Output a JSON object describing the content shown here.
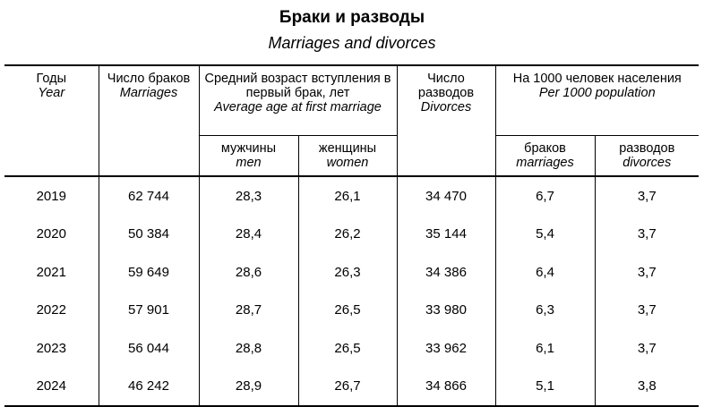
{
  "title": "Браки и разводы",
  "subtitle": "Marriages and divorces",
  "headers": {
    "year": {
      "ru": "Годы",
      "en": "Year"
    },
    "marriages": {
      "ru": "Число браков",
      "en": "Marriages"
    },
    "avg_age": {
      "ru": "Средний возраст вступления в первый брак, лет",
      "en": "Average age at first marriage"
    },
    "men": {
      "ru": "мужчины",
      "en": "men"
    },
    "women": {
      "ru": "женщины",
      "en": "women"
    },
    "divorces": {
      "ru": "Число разводов",
      "en": "Divorces"
    },
    "per1000": {
      "ru": "На 1000 человек населения",
      "en": "Per 1000 population"
    },
    "per_marriages": {
      "ru": "браков",
      "en": "marriages"
    },
    "per_divorces": {
      "ru": "разводов",
      "en": "divorces"
    }
  },
  "rows": [
    [
      "2019",
      "62 744",
      "28,3",
      "26,1",
      "34 470",
      "6,7",
      "3,7"
    ],
    [
      "2020",
      "50 384",
      "28,4",
      "26,2",
      "35 144",
      "5,4",
      "3,7"
    ],
    [
      "2021",
      "59 649",
      "28,6",
      "26,3",
      "34 386",
      "6,4",
      "3,7"
    ],
    [
      "2022",
      "57 901",
      "28,7",
      "26,5",
      "33 980",
      "6,3",
      "3,7"
    ],
    [
      "2023",
      "56 044",
      "28,8",
      "26,5",
      "33 962",
      "6,1",
      "3,7"
    ],
    [
      "2024",
      "46 242",
      "28,9",
      "26,7",
      "34 866",
      "5,1",
      "3,8"
    ]
  ]
}
